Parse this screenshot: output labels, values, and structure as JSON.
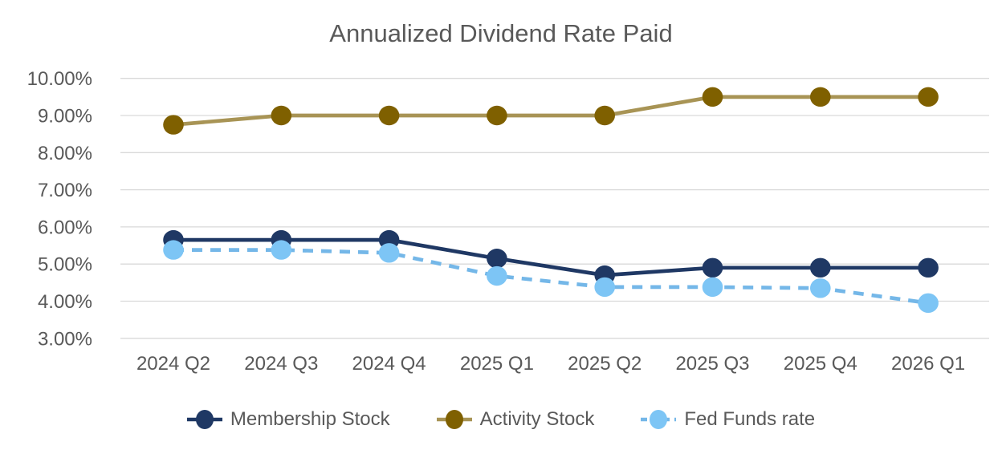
{
  "chart_data": {
    "type": "line",
    "title": "Annualized Dividend Rate Paid",
    "categories": [
      "2024 Q2",
      "2024 Q3",
      "2024 Q4",
      "2025 Q1",
      "2025 Q2",
      "2025 Q3",
      "2025 Q4",
      "2026 Q1"
    ],
    "series": [
      {
        "name": "Membership Stock",
        "marker_color": "#1F3864",
        "line_color": "#1F3864",
        "dashed": false,
        "values": [
          5.65,
          5.65,
          5.65,
          5.15,
          4.7,
          4.9,
          4.9,
          4.9
        ]
      },
      {
        "name": "Activity Stock",
        "marker_color": "#7F6000",
        "line_color": "#A89455",
        "dashed": false,
        "values": [
          8.75,
          9.0,
          9.0,
          9.0,
          9.0,
          9.5,
          9.5,
          9.5
        ]
      },
      {
        "name": "Fed Funds rate",
        "marker_color": "#7DC5F5",
        "line_color": "#74B7E8",
        "dashed": true,
        "values": [
          5.38,
          5.38,
          5.3,
          4.68,
          4.38,
          4.38,
          4.35,
          3.95
        ]
      }
    ],
    "y_axis": {
      "min": 3,
      "max": 10,
      "step": 1,
      "tick_labels": [
        "3.00%",
        "4.00%",
        "5.00%",
        "6.00%",
        "7.00%",
        "8.00%",
        "9.00%",
        "10.00%"
      ],
      "grid": true
    },
    "xlabel": "",
    "ylabel": "",
    "legend_position": "bottom"
  },
  "colors": {
    "text": "#595959",
    "gridline": "#D9D9D9",
    "background": "#FFFFFF"
  }
}
